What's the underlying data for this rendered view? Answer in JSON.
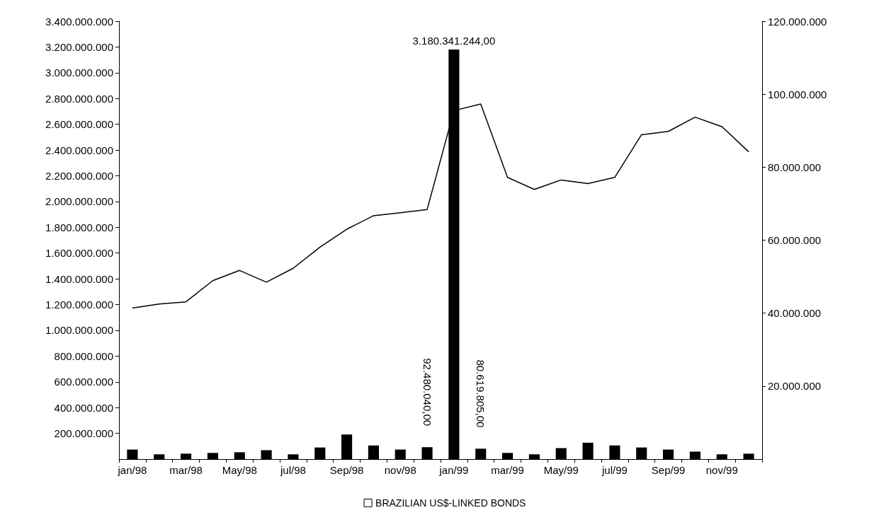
{
  "chart_data": {
    "type": "bar",
    "categories": [
      "jan/98",
      null,
      "mar/98",
      null,
      "May/98",
      null,
      "jul/98",
      null,
      "Sep/98",
      null,
      "nov/98",
      null,
      "jan/99",
      null,
      "mar/99",
      null,
      "May/99",
      null,
      "jul/99",
      null,
      "Sep/99",
      null,
      "nov/99",
      null
    ],
    "series": [
      {
        "color": "#000000",
        "values": [
          74000000,
          37000000,
          42000000,
          48000000,
          53000000,
          69000000,
          37000000,
          90000000,
          191000000,
          106000000,
          74000000,
          92480040,
          3180341244,
          80619805,
          48000000,
          37000000,
          85000000,
          127000000,
          106000000,
          90000000,
          74000000,
          58000000,
          37000000,
          42000000
        ],
        "value_labels": [
          null,
          null,
          null,
          null,
          null,
          null,
          null,
          null,
          null,
          null,
          null,
          "92.480.040,00",
          "3.180.341.244,00",
          "80.619.805,00",
          null,
          null,
          null,
          null,
          null,
          null,
          null,
          null,
          null,
          null
        ]
      },
      {
        "type": "line",
        "axis": "y2",
        "name": "BRAZILIAN US$-LINKED BONDS",
        "color": "#000000",
        "values": [
          41400000,
          42500000,
          43100000,
          48900000,
          51700000,
          48500000,
          52300000,
          58100000,
          63000000,
          66700000,
          67500000,
          68400000,
          95500000,
          97300000,
          77200000,
          73900000,
          76500000,
          75500000,
          77200000,
          88900000,
          89800000,
          93700000,
          91100000,
          84200000
        ]
      }
    ],
    "ylim": [
      0,
      3400000000
    ],
    "yticks": [
      {
        "value": 200000000,
        "label": "200.000.000"
      },
      {
        "value": 400000000,
        "label": "400.000.000"
      },
      {
        "value": 600000000,
        "label": "600.000.000"
      },
      {
        "value": 800000000,
        "label": "800.000.000"
      },
      {
        "value": 1000000000,
        "label": "1.000.000.000"
      },
      {
        "value": 1200000000,
        "label": "1.200.000.000"
      },
      {
        "value": 1400000000,
        "label": "1.400.000.000"
      },
      {
        "value": 1600000000,
        "label": "1.600.000.000"
      },
      {
        "value": 1800000000,
        "label": "1.800.000.000"
      },
      {
        "value": 2000000000,
        "label": "2.000.000.000"
      },
      {
        "value": 2200000000,
        "label": "2.200.000.000"
      },
      {
        "value": 2400000000,
        "label": "2.400.000.000"
      },
      {
        "value": 2600000000,
        "label": "2.600.000.000"
      },
      {
        "value": 2800000000,
        "label": "2.800.000.000"
      },
      {
        "value": 3000000000,
        "label": "3.000.000.000"
      },
      {
        "value": 3200000000,
        "label": "3.200.000.000"
      },
      {
        "value": 3400000000,
        "label": "3.400.000.000"
      }
    ],
    "y2lim": [
      0,
      120000000
    ],
    "y2ticks": [
      {
        "value": 20000000,
        "label": "20.000.000"
      },
      {
        "value": 40000000,
        "label": "40.000.000"
      },
      {
        "value": 60000000,
        "label": "60.000.000"
      },
      {
        "value": 80000000,
        "label": "80.000.000"
      },
      {
        "value": 100000000,
        "label": "100.000.000"
      },
      {
        "value": 120000000,
        "label": "120.000.000"
      }
    ],
    "grid": false,
    "legend": "bottom",
    "marker": "none"
  }
}
